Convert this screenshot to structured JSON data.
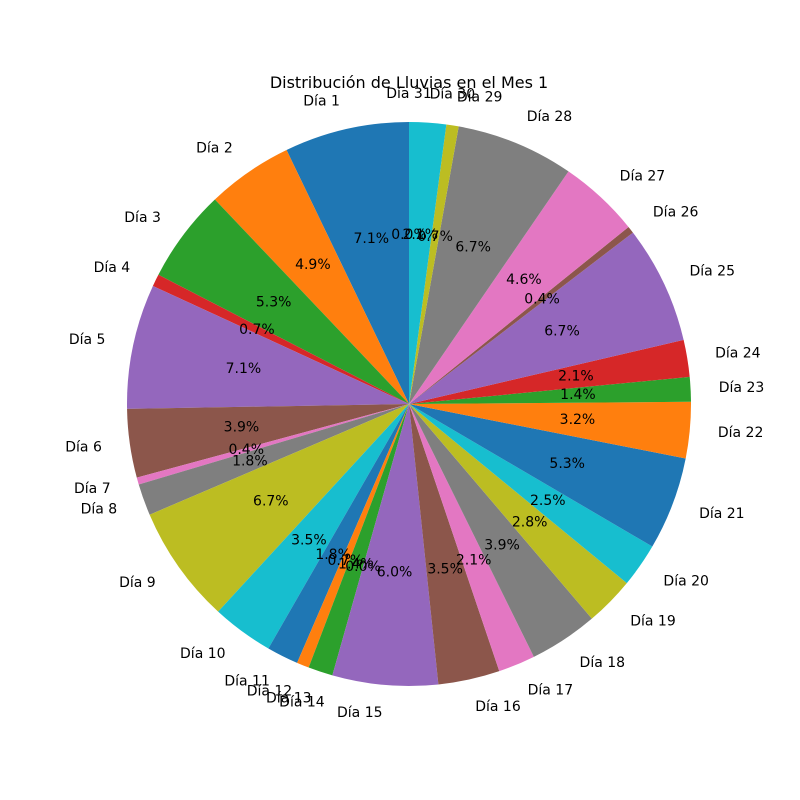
{
  "chart_data": {
    "type": "pie",
    "title": "Distribución de Lluvias en el Mes 1",
    "start_angle_deg": 90,
    "direction": "counterclockwise",
    "slices": [
      {
        "label": "Día 1",
        "percent": 7.1,
        "pct_text": "7.1%",
        "color": "#1f77b4"
      },
      {
        "label": "Día 2",
        "percent": 4.9,
        "pct_text": "4.9%",
        "color": "#ff7f0e"
      },
      {
        "label": "Día 3",
        "percent": 5.3,
        "pct_text": "5.3%",
        "color": "#2ca02c"
      },
      {
        "label": "Día 4",
        "percent": 0.7,
        "pct_text": "0.7%",
        "color": "#d62728"
      },
      {
        "label": "Día 5",
        "percent": 7.1,
        "pct_text": "7.1%",
        "color": "#9467bd"
      },
      {
        "label": "Día 6",
        "percent": 3.9,
        "pct_text": "3.9%",
        "color": "#8c564b"
      },
      {
        "label": "Día 7",
        "percent": 0.4,
        "pct_text": "0.4%",
        "color": "#e377c2"
      },
      {
        "label": "Día 8",
        "percent": 1.8,
        "pct_text": "1.8%",
        "color": "#7f7f7f"
      },
      {
        "label": "Día 9",
        "percent": 6.7,
        "pct_text": "6.7%",
        "color": "#bcbd22"
      },
      {
        "label": "Día 10",
        "percent": 3.5,
        "pct_text": "3.5%",
        "color": "#17becf"
      },
      {
        "label": "Día 11",
        "percent": 1.8,
        "pct_text": "1.8%",
        "color": "#1f77b4"
      },
      {
        "label": "Día 12",
        "percent": 0.7,
        "pct_text": "0.7%",
        "color": "#ff7f0e"
      },
      {
        "label": "Día 13",
        "percent": 1.4,
        "pct_text": "1.4%",
        "color": "#2ca02c"
      },
      {
        "label": "Día 14",
        "percent": 0.0,
        "pct_text": "0.0%",
        "color": "#d62728"
      },
      {
        "label": "Día 15",
        "percent": 6.0,
        "pct_text": "6.0%",
        "color": "#9467bd"
      },
      {
        "label": "Día 16",
        "percent": 3.5,
        "pct_text": "3.5%",
        "color": "#8c564b"
      },
      {
        "label": "Día 17",
        "percent": 2.1,
        "pct_text": "2.1%",
        "color": "#e377c2"
      },
      {
        "label": "Día 18",
        "percent": 3.9,
        "pct_text": "3.9%",
        "color": "#7f7f7f"
      },
      {
        "label": "Día 19",
        "percent": 2.8,
        "pct_text": "2.8%",
        "color": "#bcbd22"
      },
      {
        "label": "Día 20",
        "percent": 2.5,
        "pct_text": "2.5%",
        "color": "#17becf"
      },
      {
        "label": "Día 21",
        "percent": 5.3,
        "pct_text": "5.3%",
        "color": "#1f77b4"
      },
      {
        "label": "Día 22",
        "percent": 3.2,
        "pct_text": "3.2%",
        "color": "#ff7f0e"
      },
      {
        "label": "Día 23",
        "percent": 1.4,
        "pct_text": "1.4%",
        "color": "#2ca02c"
      },
      {
        "label": "Día 24",
        "percent": 2.1,
        "pct_text": "2.1%",
        "color": "#d62728"
      },
      {
        "label": "Día 25",
        "percent": 6.7,
        "pct_text": "6.7%",
        "color": "#9467bd"
      },
      {
        "label": "Día 26",
        "percent": 0.4,
        "pct_text": "0.4%",
        "color": "#8c564b"
      },
      {
        "label": "Día 27",
        "percent": 4.6,
        "pct_text": "4.6%",
        "color": "#e377c2"
      },
      {
        "label": "Día 28",
        "percent": 6.7,
        "pct_text": "6.7%",
        "color": "#7f7f7f"
      },
      {
        "label": "Día 29",
        "percent": 0.7,
        "pct_text": "0.7%",
        "color": "#bcbd22"
      },
      {
        "label": "Día 30",
        "percent": 2.1,
        "pct_text": "2.1%",
        "color": "#17becf"
      },
      {
        "label": "Día 31",
        "percent": 0.0,
        "pct_text": "0.0%",
        "color": "#1f77b4"
      }
    ]
  }
}
